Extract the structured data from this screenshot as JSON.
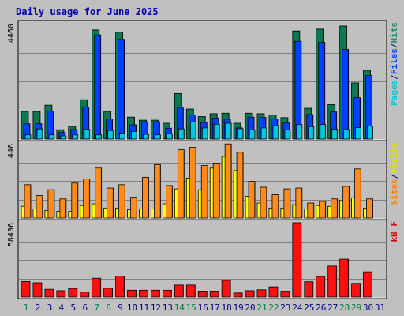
{
  "chart_data": {
    "type": "bar",
    "title": "Daily usage for June 2025",
    "categories": [
      "1",
      "2",
      "3",
      "4",
      "5",
      "6",
      "7",
      "8",
      "9",
      "10",
      "11",
      "12",
      "13",
      "14",
      "15",
      "16",
      "17",
      "18",
      "19",
      "20",
      "21",
      "22",
      "23",
      "24",
      "25",
      "26",
      "27",
      "28",
      "29",
      "30",
      "31"
    ],
    "weekend_days": [
      "1",
      "7",
      "8",
      "14",
      "15",
      "21",
      "22",
      "28",
      "29"
    ],
    "panels": [
      {
        "id": "hits-files-pages",
        "max_label": "4460",
        "ymax": 4460,
        "labels": [
          {
            "text": "Pages",
            "color": "#00c8e0"
          },
          {
            "text": "/",
            "color": "#000080"
          },
          {
            "text": "Files",
            "color": "#0040ff"
          },
          {
            "text": "/",
            "color": "#000080"
          },
          {
            "text": "Hits",
            "color": "#2a8a6a"
          }
        ],
        "series": [
          {
            "name": "Hits",
            "color": "#0a7a55",
            "values": [
              1070,
              1070,
              1310,
              360,
              490,
              1520,
              4220,
              1070,
              4130,
              850,
              730,
              730,
              610,
              1760,
              1160,
              870,
              980,
              1000,
              610,
              1000,
              980,
              930,
              830,
              4180,
              1190,
              4250,
              1330,
              4370,
              2170,
              2660
            ]
          },
          {
            "name": "Files",
            "color": "#0040ff",
            "values": [
              590,
              590,
              1080,
              250,
              370,
              1240,
              4030,
              780,
              3860,
              550,
              670,
              670,
              420,
              1220,
              930,
              640,
              810,
              770,
              430,
              850,
              840,
              780,
              620,
              3780,
              950,
              3740,
              1050,
              3470,
              1600,
              2460
            ]
          },
          {
            "name": "Pages",
            "color": "#00c8e0",
            "values": [
              160,
              390,
              160,
              120,
              160,
              370,
              160,
              330,
              230,
              290,
              180,
              160,
              210,
              390,
              660,
              430,
              570,
              610,
              400,
              360,
              430,
              520,
              360,
              560,
              480,
              560,
              380,
              370,
              440,
              500
            ]
          }
        ]
      },
      {
        "id": "visits-sites",
        "max_label": "446",
        "ymax": 446,
        "labels": [
          {
            "text": "Sites",
            "color": "#ff8000"
          },
          {
            "text": "/",
            "color": "#000080"
          },
          {
            "text": "Visits",
            "color": "#e0e000"
          }
        ],
        "series": [
          {
            "name": "Sites",
            "color": "#ff8c1a",
            "values": [
              200,
              135,
              170,
              115,
              210,
              235,
              300,
              180,
              200,
              125,
              245,
              320,
              195,
              410,
              425,
              315,
              330,
              445,
              395,
              220,
              185,
              140,
              175,
              180,
              90,
              100,
              115,
              190,
              295,
              115
            ]
          },
          {
            "name": "Visits",
            "color": "#ffff00",
            "values": [
              70,
              55,
              45,
              40,
              40,
              75,
              85,
              60,
              60,
              50,
              55,
              55,
              85,
              175,
              240,
              170,
              300,
              370,
              285,
              130,
              90,
              60,
              60,
              80,
              55,
              75,
              70,
              105,
              120,
              60
            ]
          }
        ]
      },
      {
        "id": "kbytes",
        "max_label": "58436",
        "ymax": 58436,
        "labels": [
          {
            "text": "kB F",
            "color": "#e00000"
          }
        ],
        "series": [
          {
            "name": "kB F",
            "color": "#ff1010",
            "values": [
              12200,
              11200,
              6100,
              5000,
              6700,
              3900,
              14800,
              6900,
              16500,
              5400,
              5400,
              5400,
              5400,
              9400,
              9400,
              4700,
              4700,
              13100,
              3200,
              5000,
              5700,
              8000,
              4600,
              58436,
              12000,
              16200,
              24300,
              29800,
              10700,
              19800
            ]
          }
        ]
      }
    ]
  }
}
